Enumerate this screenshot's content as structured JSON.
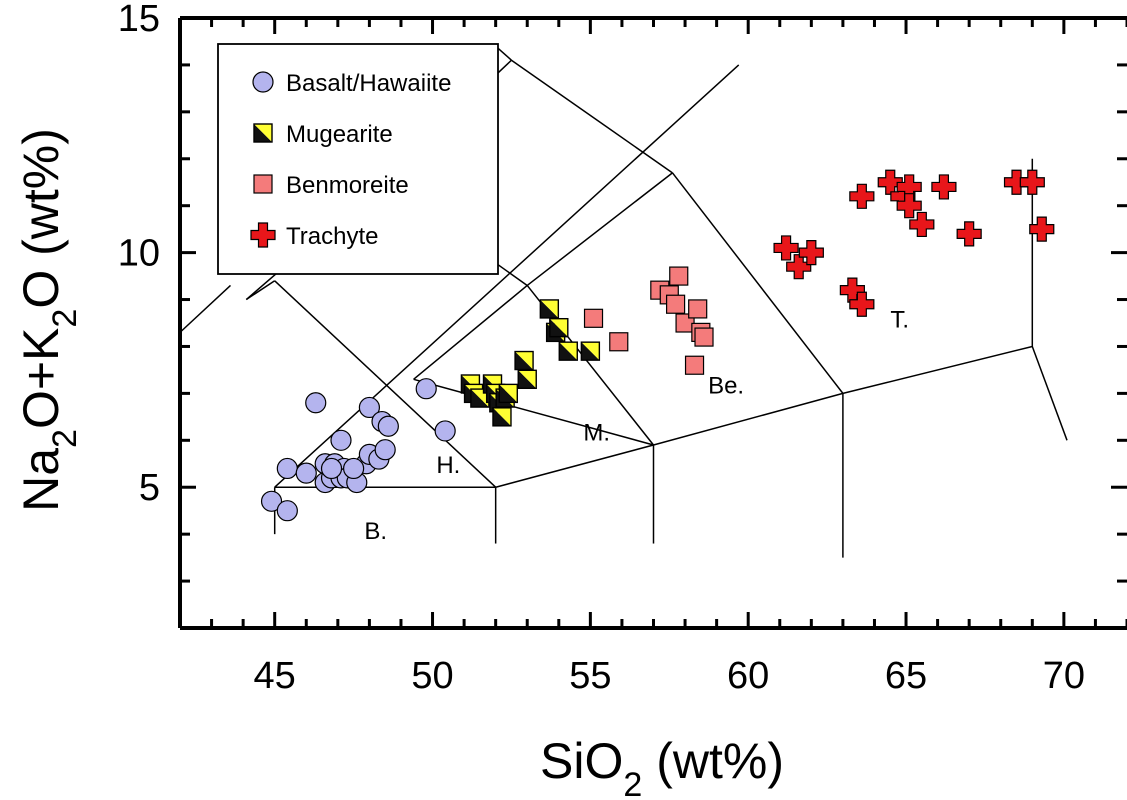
{
  "chart_data": {
    "type": "scatter",
    "xlabel": {
      "main": "SiO",
      "sub": "2",
      "rest": " (wt%)"
    },
    "ylabel": {
      "p1": "Na",
      "s1": "2",
      "p2": "O+K",
      "s2": "2",
      "p3": "O (wt%)"
    },
    "xlim": [
      42,
      72
    ],
    "ylim": [
      2,
      15
    ],
    "x_ticks": [
      45,
      50,
      55,
      60,
      65,
      70
    ],
    "y_ticks": [
      5,
      10,
      15
    ],
    "x_tick_labels": [
      "45",
      "50",
      "55",
      "60",
      "65",
      "70"
    ],
    "y_tick_labels": [
      "5",
      "10",
      "15"
    ],
    "grid": false,
    "legend_position": "top-left",
    "colors": {
      "basalt": "#b4b4ee",
      "mugearite_a": "#111111",
      "mugearite_b": "#ffff33",
      "benmoreite": "#f47b7b",
      "trachyte": "#e8161a"
    },
    "series": [
      {
        "name": "Basalt/Hawaiite",
        "marker": "circle",
        "points": [
          [
            44.9,
            4.7
          ],
          [
            45.4,
            4.5
          ],
          [
            45.4,
            5.4
          ],
          [
            46.0,
            5.3
          ],
          [
            46.3,
            6.8
          ],
          [
            46.6,
            5.5
          ],
          [
            46.6,
            5.1
          ],
          [
            46.8,
            5.2
          ],
          [
            46.9,
            5.5
          ],
          [
            47.1,
            5.2
          ],
          [
            47.1,
            6.0
          ],
          [
            47.2,
            5.4
          ],
          [
            47.3,
            5.2
          ],
          [
            47.6,
            5.1
          ],
          [
            47.9,
            5.5
          ],
          [
            48.0,
            5.7
          ],
          [
            48.0,
            6.7
          ],
          [
            48.3,
            5.6
          ],
          [
            48.4,
            6.4
          ],
          [
            48.5,
            5.8
          ],
          [
            48.6,
            6.3
          ],
          [
            49.8,
            7.1
          ],
          [
            50.4,
            6.2
          ],
          [
            47.5,
            5.4
          ],
          [
            46.8,
            5.4
          ]
        ]
      },
      {
        "name": "Mugearite",
        "marker": "half-square",
        "points": [
          [
            51.2,
            7.2
          ],
          [
            51.3,
            7.0
          ],
          [
            51.5,
            6.9
          ],
          [
            51.9,
            7.2
          ],
          [
            52.0,
            7.0
          ],
          [
            52.1,
            6.8
          ],
          [
            52.3,
            6.9
          ],
          [
            52.4,
            7.0
          ],
          [
            52.2,
            6.5
          ],
          [
            52.9,
            7.7
          ],
          [
            53.0,
            7.3
          ],
          [
            53.7,
            8.8
          ],
          [
            53.9,
            8.3
          ],
          [
            54.0,
            8.4
          ],
          [
            54.3,
            7.9
          ],
          [
            55.0,
            7.9
          ]
        ]
      },
      {
        "name": "Benmoreite",
        "marker": "square",
        "points": [
          [
            55.1,
            8.6
          ],
          [
            55.9,
            8.1
          ],
          [
            57.2,
            9.2
          ],
          [
            57.5,
            9.1
          ],
          [
            57.7,
            8.9
          ],
          [
            57.8,
            9.5
          ],
          [
            58.0,
            8.5
          ],
          [
            58.4,
            8.8
          ],
          [
            58.5,
            8.3
          ],
          [
            58.6,
            8.2
          ],
          [
            58.3,
            7.6
          ]
        ]
      },
      {
        "name": "Trachyte",
        "marker": "cross",
        "points": [
          [
            61.2,
            10.1
          ],
          [
            61.6,
            9.7
          ],
          [
            62.0,
            10.0
          ],
          [
            63.3,
            9.2
          ],
          [
            63.6,
            8.9
          ],
          [
            63.6,
            11.2
          ],
          [
            64.5,
            11.5
          ],
          [
            64.9,
            11.2
          ],
          [
            65.1,
            11.4
          ],
          [
            65.1,
            11.0
          ],
          [
            65.5,
            10.6
          ],
          [
            66.2,
            11.4
          ],
          [
            67.0,
            10.4
          ],
          [
            68.5,
            11.5
          ],
          [
            69.0,
            11.5
          ],
          [
            69.3,
            10.5
          ]
        ]
      }
    ],
    "field_labels": [
      {
        "text": "B.",
        "x": 48.2,
        "y": 3.9
      },
      {
        "text": "H.",
        "x": 50.5,
        "y": 5.3
      },
      {
        "text": "M.",
        "x": 55.2,
        "y": 6.0
      },
      {
        "text": "Be.",
        "x": 59.3,
        "y": 7.0
      },
      {
        "text": "T.",
        "x": 64.8,
        "y": 8.4
      }
    ],
    "boundary_lines": [
      [
        [
          45.0,
          5.0
        ],
        [
          45.0,
          4.0
        ]
      ],
      [
        [
          45.0,
          5.0
        ],
        [
          52.0,
          5.0
        ]
      ],
      [
        [
          52.0,
          5.0
        ],
        [
          52.0,
          3.8
        ]
      ],
      [
        [
          52.0,
          5.0
        ],
        [
          57.0,
          5.9
        ]
      ],
      [
        [
          57.0,
          5.9
        ],
        [
          57.0,
          3.8
        ]
      ],
      [
        [
          57.0,
          5.9
        ],
        [
          63.0,
          7.0
        ]
      ],
      [
        [
          63.0,
          7.0
        ],
        [
          63.0,
          3.5
        ]
      ],
      [
        [
          63.0,
          7.0
        ],
        [
          69.0,
          8.0
        ]
      ],
      [
        [
          69.0,
          8.0
        ],
        [
          69.0,
          12.0
        ]
      ],
      [
        [
          69.0,
          8.0
        ],
        [
          70.1,
          6.0
        ]
      ],
      [
        [
          45.0,
          9.4
        ],
        [
          52.0,
          5.0
        ]
      ],
      [
        [
          45.0,
          9.4
        ],
        [
          44.1,
          9.0
        ]
      ],
      [
        [
          42.0,
          8.3
        ],
        [
          43.6,
          9.3
        ]
      ],
      [
        [
          49.4,
          7.3
        ],
        [
          57.0,
          5.9
        ]
      ],
      [
        [
          53.0,
          9.3
        ],
        [
          57.0,
          5.9
        ]
      ],
      [
        [
          57.6,
          11.7
        ],
        [
          63.0,
          7.0
        ]
      ],
      [
        [
          57.6,
          11.7
        ],
        [
          53.0,
          9.3
        ]
      ],
      [
        [
          53.0,
          9.3
        ],
        [
          49.4,
          7.3
        ]
      ],
      [
        [
          53.0,
          9.3
        ],
        [
          48.4,
          11.5
        ]
      ],
      [
        [
          48.4,
          11.5
        ],
        [
          44.1,
          9.0
        ]
      ],
      [
        [
          48.4,
          11.5
        ],
        [
          52.5,
          14.1
        ]
      ],
      [
        [
          52.5,
          14.1
        ],
        [
          52.0,
          14.4
        ]
      ],
      [
        [
          45.0,
          5.0
        ],
        [
          59.7,
          14.0
        ]
      ],
      [
        [
          57.6,
          11.7
        ],
        [
          52.5,
          14.1
        ]
      ]
    ]
  }
}
